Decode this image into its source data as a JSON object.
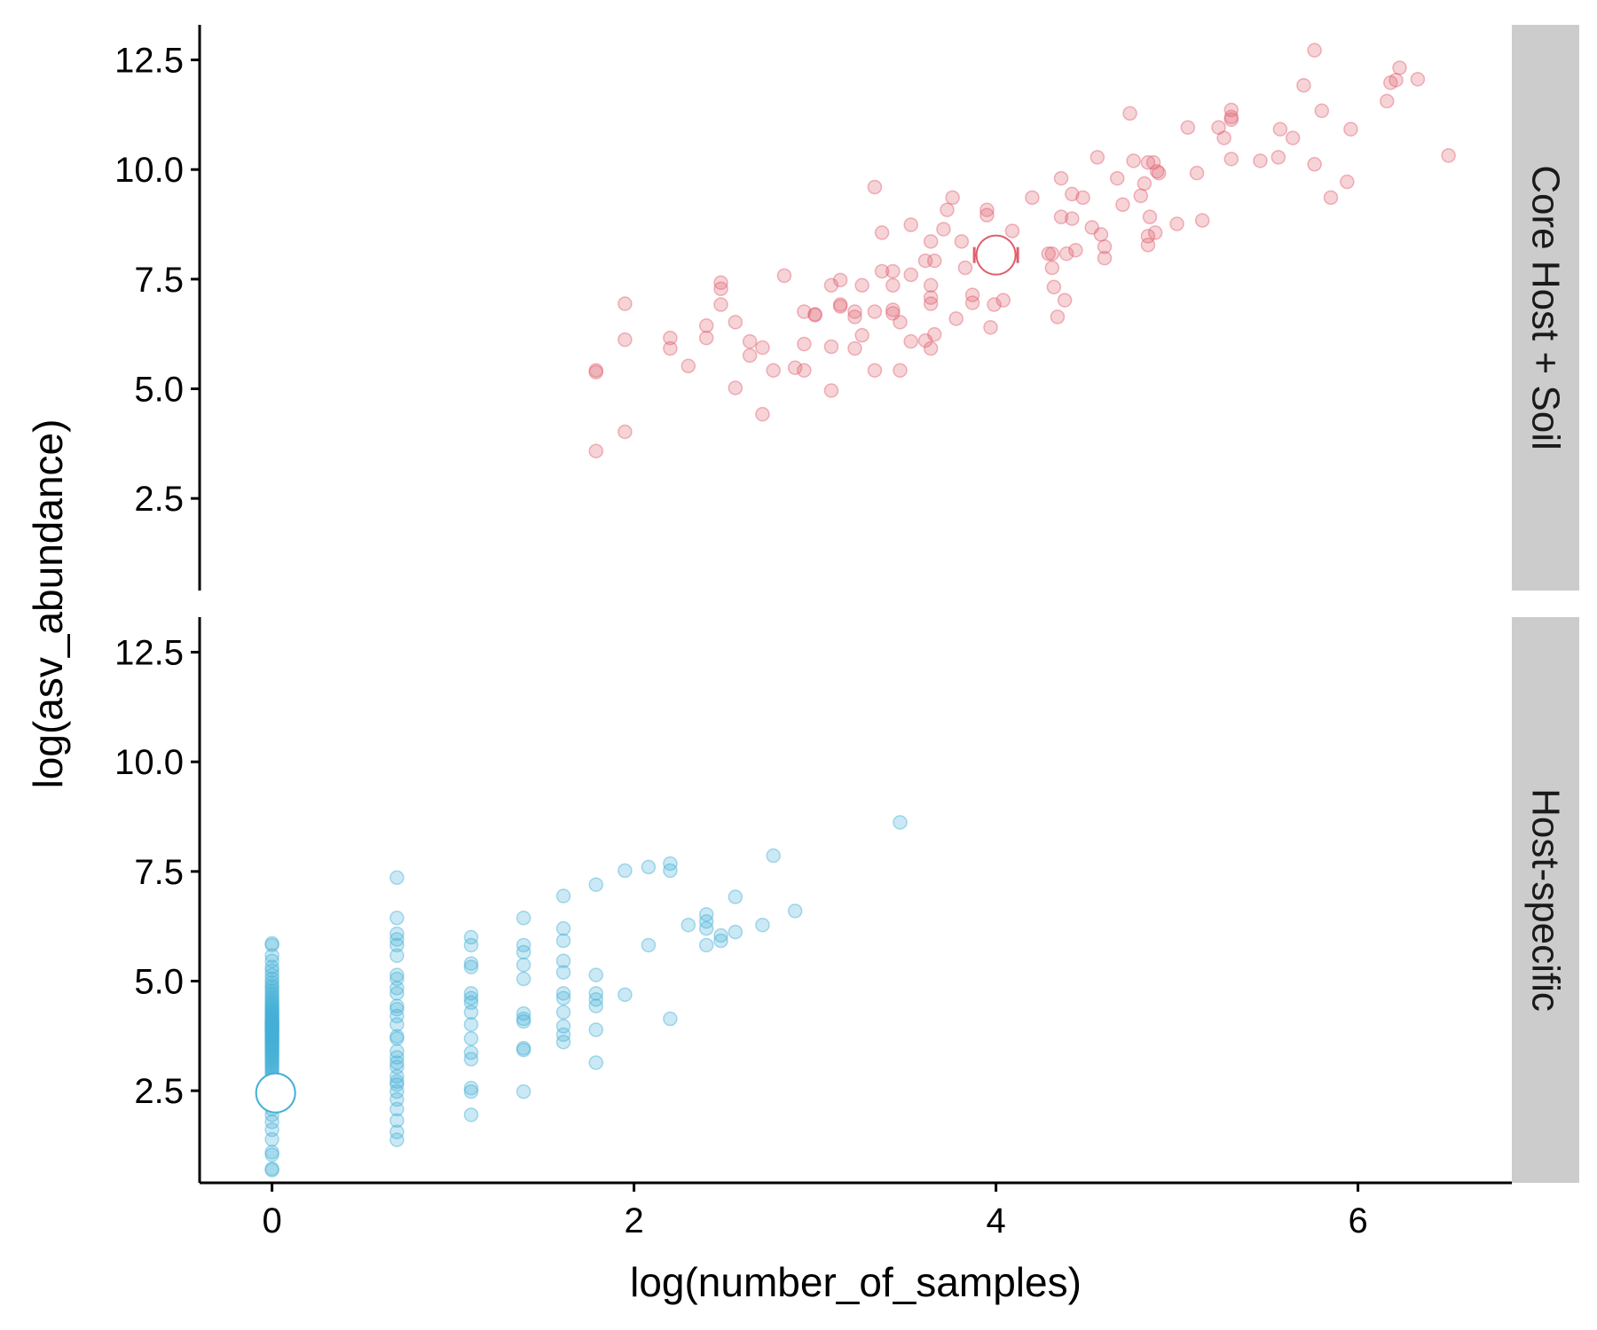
{
  "chart_data": {
    "type": "scatter",
    "xlabel": "log(number_of_samples)",
    "ylabel": "log(asv_abundance)",
    "xlim": [
      -0.4,
      6.85
    ],
    "ylim": [
      0.4,
      13.3
    ],
    "x_ticks": [
      "0",
      "2",
      "4",
      "6"
    ],
    "x_tick_values": [
      0,
      2,
      4,
      6
    ],
    "y_ticks": [
      "2.5",
      "5.0",
      "7.5",
      "10.0",
      "12.5"
    ],
    "y_tick_values": [
      2.5,
      5.0,
      7.5,
      10.0,
      12.5
    ],
    "grid": false,
    "legend": "none",
    "facets": [
      {
        "label": "Core Host + Soil",
        "color": "#e0606f",
        "mean": {
          "x": 4.0,
          "y": 8.05,
          "x_err": 0.12
        },
        "points": [
          [
            1.79,
            3.58
          ],
          [
            1.79,
            5.38
          ],
          [
            1.79,
            5.42
          ],
          [
            1.95,
            4.02
          ],
          [
            1.95,
            6.12
          ],
          [
            1.95,
            6.94
          ],
          [
            2.2,
            5.92
          ],
          [
            2.2,
            6.16
          ],
          [
            2.3,
            5.52
          ],
          [
            2.4,
            6.16
          ],
          [
            2.4,
            6.44
          ],
          [
            2.48,
            6.92
          ],
          [
            2.48,
            7.28
          ],
          [
            2.48,
            7.42
          ],
          [
            2.56,
            6.52
          ],
          [
            2.56,
            5.02
          ],
          [
            2.64,
            5.76
          ],
          [
            2.64,
            6.08
          ],
          [
            2.71,
            4.42
          ],
          [
            2.71,
            5.94
          ],
          [
            2.77,
            5.42
          ],
          [
            2.83,
            7.58
          ],
          [
            2.89,
            5.48
          ],
          [
            2.94,
            5.42
          ],
          [
            2.94,
            6.02
          ],
          [
            2.94,
            6.76
          ],
          [
            3.0,
            6.7
          ],
          [
            3.0,
            6.68
          ],
          [
            3.09,
            4.96
          ],
          [
            3.09,
            5.96
          ],
          [
            3.09,
            7.36
          ],
          [
            3.14,
            6.92
          ],
          [
            3.14,
            7.48
          ],
          [
            3.14,
            6.88
          ],
          [
            3.22,
            5.92
          ],
          [
            3.22,
            6.76
          ],
          [
            3.22,
            6.64
          ],
          [
            3.26,
            7.36
          ],
          [
            3.26,
            6.22
          ],
          [
            3.33,
            5.42
          ],
          [
            3.33,
            6.76
          ],
          [
            3.33,
            9.6
          ],
          [
            3.37,
            7.68
          ],
          [
            3.37,
            8.56
          ],
          [
            3.43,
            6.8
          ],
          [
            3.43,
            6.72
          ],
          [
            3.43,
            7.36
          ],
          [
            3.43,
            7.68
          ],
          [
            3.47,
            5.42
          ],
          [
            3.47,
            6.52
          ],
          [
            3.53,
            7.6
          ],
          [
            3.53,
            8.74
          ],
          [
            3.53,
            6.08
          ],
          [
            3.61,
            6.1
          ],
          [
            3.61,
            7.92
          ],
          [
            3.64,
            5.92
          ],
          [
            3.64,
            6.94
          ],
          [
            3.64,
            7.08
          ],
          [
            3.64,
            7.36
          ],
          [
            3.64,
            8.36
          ],
          [
            3.66,
            6.24
          ],
          [
            3.66,
            7.92
          ],
          [
            3.71,
            8.64
          ],
          [
            3.73,
            9.08
          ],
          [
            3.76,
            9.36
          ],
          [
            3.78,
            6.6
          ],
          [
            3.81,
            8.36
          ],
          [
            3.83,
            7.76
          ],
          [
            3.87,
            7.14
          ],
          [
            3.87,
            6.96
          ],
          [
            3.93,
            8.08
          ],
          [
            3.95,
            8.96
          ],
          [
            3.95,
            9.08
          ],
          [
            3.97,
            6.4
          ],
          [
            3.99,
            6.92
          ],
          [
            4.04,
            7.02
          ],
          [
            4.09,
            8.6
          ],
          [
            4.2,
            9.36
          ],
          [
            4.29,
            8.08
          ],
          [
            4.31,
            7.76
          ],
          [
            4.31,
            8.08
          ],
          [
            4.32,
            7.32
          ],
          [
            4.34,
            6.64
          ],
          [
            4.36,
            9.8
          ],
          [
            4.36,
            8.92
          ],
          [
            4.38,
            7.02
          ],
          [
            4.39,
            8.08
          ],
          [
            4.42,
            8.88
          ],
          [
            4.42,
            9.44
          ],
          [
            4.44,
            8.16
          ],
          [
            4.48,
            9.36
          ],
          [
            4.53,
            8.68
          ],
          [
            4.56,
            10.28
          ],
          [
            4.58,
            8.52
          ],
          [
            4.6,
            7.98
          ],
          [
            4.6,
            8.24
          ],
          [
            4.67,
            9.8
          ],
          [
            4.7,
            9.2
          ],
          [
            4.74,
            11.28
          ],
          [
            4.76,
            10.2
          ],
          [
            4.8,
            9.4
          ],
          [
            4.82,
            9.68
          ],
          [
            4.84,
            8.48
          ],
          [
            4.84,
            8.28
          ],
          [
            4.84,
            10.16
          ],
          [
            4.85,
            8.92
          ],
          [
            4.87,
            10.16
          ],
          [
            4.88,
            8.56
          ],
          [
            4.89,
            9.96
          ],
          [
            4.9,
            9.92
          ],
          [
            5.0,
            8.76
          ],
          [
            5.06,
            10.96
          ],
          [
            5.11,
            9.92
          ],
          [
            5.14,
            8.84
          ],
          [
            5.23,
            10.96
          ],
          [
            5.26,
            10.72
          ],
          [
            5.3,
            11.2
          ],
          [
            5.3,
            11.36
          ],
          [
            5.3,
            11.14
          ],
          [
            5.3,
            10.24
          ],
          [
            5.46,
            10.2
          ],
          [
            5.56,
            10.28
          ],
          [
            5.57,
            10.92
          ],
          [
            5.64,
            10.72
          ],
          [
            5.7,
            11.92
          ],
          [
            5.76,
            12.72
          ],
          [
            5.76,
            10.12
          ],
          [
            5.8,
            11.34
          ],
          [
            5.85,
            9.36
          ],
          [
            5.94,
            9.72
          ],
          [
            5.96,
            10.92
          ],
          [
            6.16,
            11.56
          ],
          [
            6.18,
            11.98
          ],
          [
            6.21,
            12.04
          ],
          [
            6.23,
            12.32
          ],
          [
            6.33,
            12.06
          ],
          [
            6.5,
            10.32
          ]
        ]
      },
      {
        "label": "Host-specific",
        "color": "#45afd8",
        "mean": {
          "x": 0.02,
          "y": 2.45,
          "x_err": 0.0
        },
        "points": [
          [
            0,
            0.69
          ],
          [
            0,
            0.72
          ],
          [
            0,
            1.04
          ],
          [
            0,
            1.1
          ],
          [
            0,
            1.39
          ],
          [
            0,
            1.61
          ],
          [
            0,
            1.79
          ],
          [
            0,
            1.95
          ],
          [
            0,
            2.08
          ],
          [
            0,
            2.2
          ],
          [
            0,
            2.3
          ],
          [
            0,
            2.4
          ],
          [
            0,
            2.48
          ],
          [
            0,
            2.56
          ],
          [
            0,
            2.64
          ],
          [
            0,
            2.71
          ],
          [
            0,
            2.77
          ],
          [
            0,
            2.83
          ],
          [
            0,
            2.89
          ],
          [
            0,
            2.94
          ],
          [
            0,
            3.0
          ],
          [
            0,
            3.04
          ],
          [
            0,
            3.09
          ],
          [
            0,
            3.14
          ],
          [
            0,
            3.18
          ],
          [
            0,
            3.22
          ],
          [
            0,
            3.26
          ],
          [
            0,
            3.3
          ],
          [
            0,
            3.33
          ],
          [
            0,
            3.37
          ],
          [
            0,
            3.4
          ],
          [
            0,
            3.43
          ],
          [
            0,
            3.47
          ],
          [
            0,
            3.5
          ],
          [
            0,
            3.53
          ],
          [
            0,
            3.56
          ],
          [
            0,
            3.58
          ],
          [
            0,
            3.61
          ],
          [
            0,
            3.64
          ],
          [
            0,
            3.66
          ],
          [
            0,
            3.69
          ],
          [
            0,
            3.71
          ],
          [
            0,
            3.74
          ],
          [
            0,
            3.76
          ],
          [
            0,
            3.78
          ],
          [
            0,
            3.81
          ],
          [
            0,
            3.83
          ],
          [
            0,
            3.85
          ],
          [
            0,
            3.87
          ],
          [
            0,
            3.89
          ],
          [
            0,
            3.91
          ],
          [
            0,
            3.93
          ],
          [
            0,
            3.95
          ],
          [
            0,
            3.97
          ],
          [
            0,
            3.99
          ],
          [
            0,
            4.01
          ],
          [
            0,
            4.03
          ],
          [
            0,
            4.04
          ],
          [
            0,
            4.06
          ],
          [
            0,
            4.08
          ],
          [
            0,
            4.11
          ],
          [
            0,
            4.14
          ],
          [
            0,
            4.17
          ],
          [
            0,
            4.2
          ],
          [
            0,
            4.23
          ],
          [
            0,
            4.26
          ],
          [
            0,
            4.29
          ],
          [
            0,
            4.32
          ],
          [
            0,
            4.36
          ],
          [
            0,
            4.39
          ],
          [
            0,
            4.43
          ],
          [
            0,
            4.47
          ],
          [
            0,
            4.51
          ],
          [
            0,
            4.56
          ],
          [
            0,
            4.61
          ],
          [
            0,
            4.66
          ],
          [
            0,
            4.72
          ],
          [
            0,
            4.78
          ],
          [
            0,
            4.84
          ],
          [
            0,
            4.9
          ],
          [
            0,
            4.97
          ],
          [
            0,
            5.05
          ],
          [
            0,
            5.14
          ],
          [
            0,
            5.24
          ],
          [
            0,
            5.32
          ],
          [
            0,
            5.46
          ],
          [
            0,
            5.58
          ],
          [
            0,
            5.82
          ],
          [
            0,
            5.86
          ],
          [
            0.69,
            1.38
          ],
          [
            0.69,
            1.56
          ],
          [
            0.69,
            1.82
          ],
          [
            0.69,
            2.08
          ],
          [
            0.69,
            2.3
          ],
          [
            0.69,
            2.48
          ],
          [
            0.69,
            2.64
          ],
          [
            0.69,
            2.71
          ],
          [
            0.69,
            2.83
          ],
          [
            0.69,
            3.04
          ],
          [
            0.69,
            3.14
          ],
          [
            0.69,
            3.26
          ],
          [
            0.69,
            3.4
          ],
          [
            0.69,
            3.69
          ],
          [
            0.69,
            3.74
          ],
          [
            0.69,
            4.01
          ],
          [
            0.69,
            4.2
          ],
          [
            0.69,
            4.36
          ],
          [
            0.69,
            4.43
          ],
          [
            0.69,
            4.72
          ],
          [
            0.69,
            4.84
          ],
          [
            0.69,
            5.05
          ],
          [
            0.69,
            5.14
          ],
          [
            0.69,
            5.58
          ],
          [
            0.69,
            5.82
          ],
          [
            0.69,
            5.95
          ],
          [
            0.69,
            6.08
          ],
          [
            0.69,
            6.44
          ],
          [
            0.69,
            7.36
          ],
          [
            1.1,
            1.95
          ],
          [
            1.1,
            2.48
          ],
          [
            1.1,
            2.56
          ],
          [
            1.1,
            3.22
          ],
          [
            1.1,
            3.37
          ],
          [
            1.1,
            3.69
          ],
          [
            1.1,
            4.01
          ],
          [
            1.1,
            4.29
          ],
          [
            1.1,
            4.51
          ],
          [
            1.1,
            4.61
          ],
          [
            1.1,
            4.72
          ],
          [
            1.1,
            5.32
          ],
          [
            1.1,
            5.4
          ],
          [
            1.1,
            5.82
          ],
          [
            1.1,
            6.0
          ],
          [
            1.39,
            2.48
          ],
          [
            1.39,
            3.43
          ],
          [
            1.39,
            3.47
          ],
          [
            1.39,
            4.08
          ],
          [
            1.39,
            4.14
          ],
          [
            1.39,
            4.26
          ],
          [
            1.39,
            5.05
          ],
          [
            1.39,
            5.37
          ],
          [
            1.39,
            5.66
          ],
          [
            1.39,
            5.82
          ],
          [
            1.39,
            6.44
          ],
          [
            1.61,
            3.61
          ],
          [
            1.61,
            3.78
          ],
          [
            1.61,
            3.97
          ],
          [
            1.61,
            4.29
          ],
          [
            1.61,
            4.61
          ],
          [
            1.61,
            4.72
          ],
          [
            1.61,
            5.2
          ],
          [
            1.61,
            5.46
          ],
          [
            1.61,
            5.92
          ],
          [
            1.61,
            6.2
          ],
          [
            1.61,
            6.94
          ],
          [
            1.79,
            3.14
          ],
          [
            1.79,
            3.89
          ],
          [
            1.79,
            4.43
          ],
          [
            1.79,
            4.58
          ],
          [
            1.79,
            4.72
          ],
          [
            1.79,
            5.14
          ],
          [
            1.79,
            7.2
          ],
          [
            1.95,
            4.69
          ],
          [
            1.95,
            7.52
          ],
          [
            2.08,
            5.82
          ],
          [
            2.08,
            7.6
          ],
          [
            2.2,
            4.14
          ],
          [
            2.2,
            7.52
          ],
          [
            2.2,
            7.68
          ],
          [
            2.3,
            6.28
          ],
          [
            2.4,
            5.82
          ],
          [
            2.4,
            6.2
          ],
          [
            2.4,
            6.36
          ],
          [
            2.4,
            6.52
          ],
          [
            2.48,
            5.92
          ],
          [
            2.48,
            6.04
          ],
          [
            2.56,
            6.12
          ],
          [
            2.56,
            6.92
          ],
          [
            2.71,
            6.28
          ],
          [
            2.77,
            7.86
          ],
          [
            2.89,
            6.6
          ],
          [
            3.47,
            8.62
          ]
        ]
      }
    ]
  }
}
